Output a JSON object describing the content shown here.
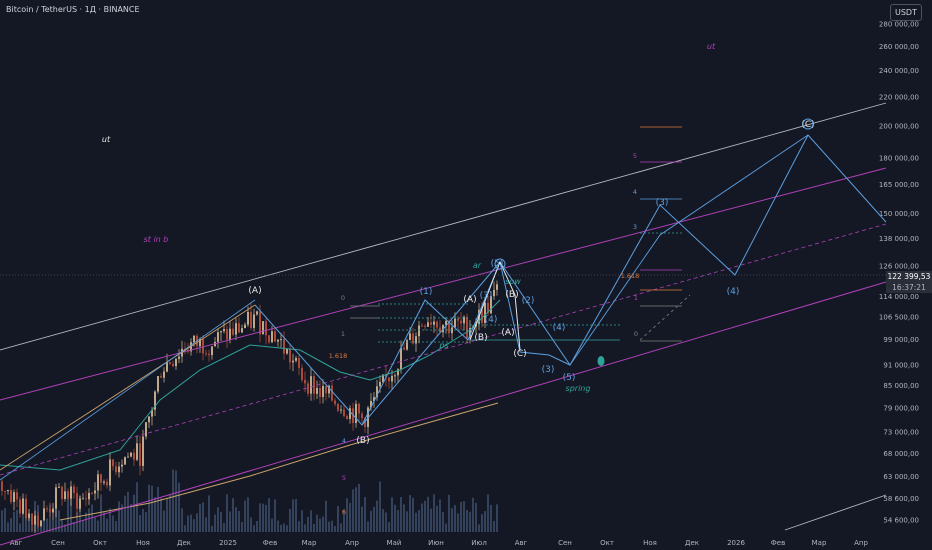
{
  "header": {
    "title": "Bitcoin / TetherUS · 1Д · BINANCE",
    "currency": "USDT"
  },
  "price_tag": {
    "price": "122 399,53",
    "countdown": "16:37:21"
  },
  "colors": {
    "background": "#141824",
    "axis_text": "#b2b5be",
    "candle_up": "#bfa98a",
    "candle_down": "#a84b3a",
    "volume": "#3a4a66",
    "channel_purple": "#b040b8",
    "channel_white": "#b8b8c0",
    "wave_blue": "#5b9fe0",
    "wave_white": "#e8e8e8",
    "ma_teal": "#2fa39a",
    "ma_orange": "#c9a26a"
  },
  "chart_data": {
    "type": "candlestick",
    "y_scale": "log",
    "y_ticks": [
      "280 000,00",
      "260 000,00",
      "240 000,00",
      "220 000,00",
      "200 000,00",
      "180 000,00",
      "165 000,00",
      "150 000,00",
      "138 000,00",
      "126 000,00",
      "114 000,00",
      "106 500,00",
      "99 000,00",
      "91 000,00",
      "85 000,00",
      "79 000,00",
      "73 000,00",
      "68 000,00",
      "63 000,00",
      "58 600,00",
      "54 600,00"
    ],
    "x_ticks": [
      "Авг",
      "Сен",
      "Окт",
      "Ноя",
      "Дек",
      "2025",
      "Фев",
      "Мар",
      "Апр",
      "Май",
      "Июн",
      "Июл",
      "Авг",
      "Сен",
      "Окт",
      "Ноя",
      "Дек",
      "2026",
      "Фев",
      "Мар",
      "Апр"
    ],
    "last_price": 122399.53,
    "wave_labels": [
      "(A)",
      "(B)",
      "(1)",
      "(A)",
      "(B)",
      "(3)",
      "(4)",
      "(5)",
      "(B)",
      "(2)",
      "(A)",
      "(C)",
      "(4)",
      "(3)",
      "(5)",
      "(3)",
      "(4)",
      "(C)"
    ],
    "fib_levels": [
      "0",
      "1",
      "1.618",
      "4",
      "5",
      "6",
      "5",
      "4",
      "3",
      "1.618",
      "1",
      "0"
    ],
    "annotations": [
      "ut",
      "st in b",
      "ar",
      "sow",
      "ps",
      "spring",
      "ut"
    ]
  }
}
